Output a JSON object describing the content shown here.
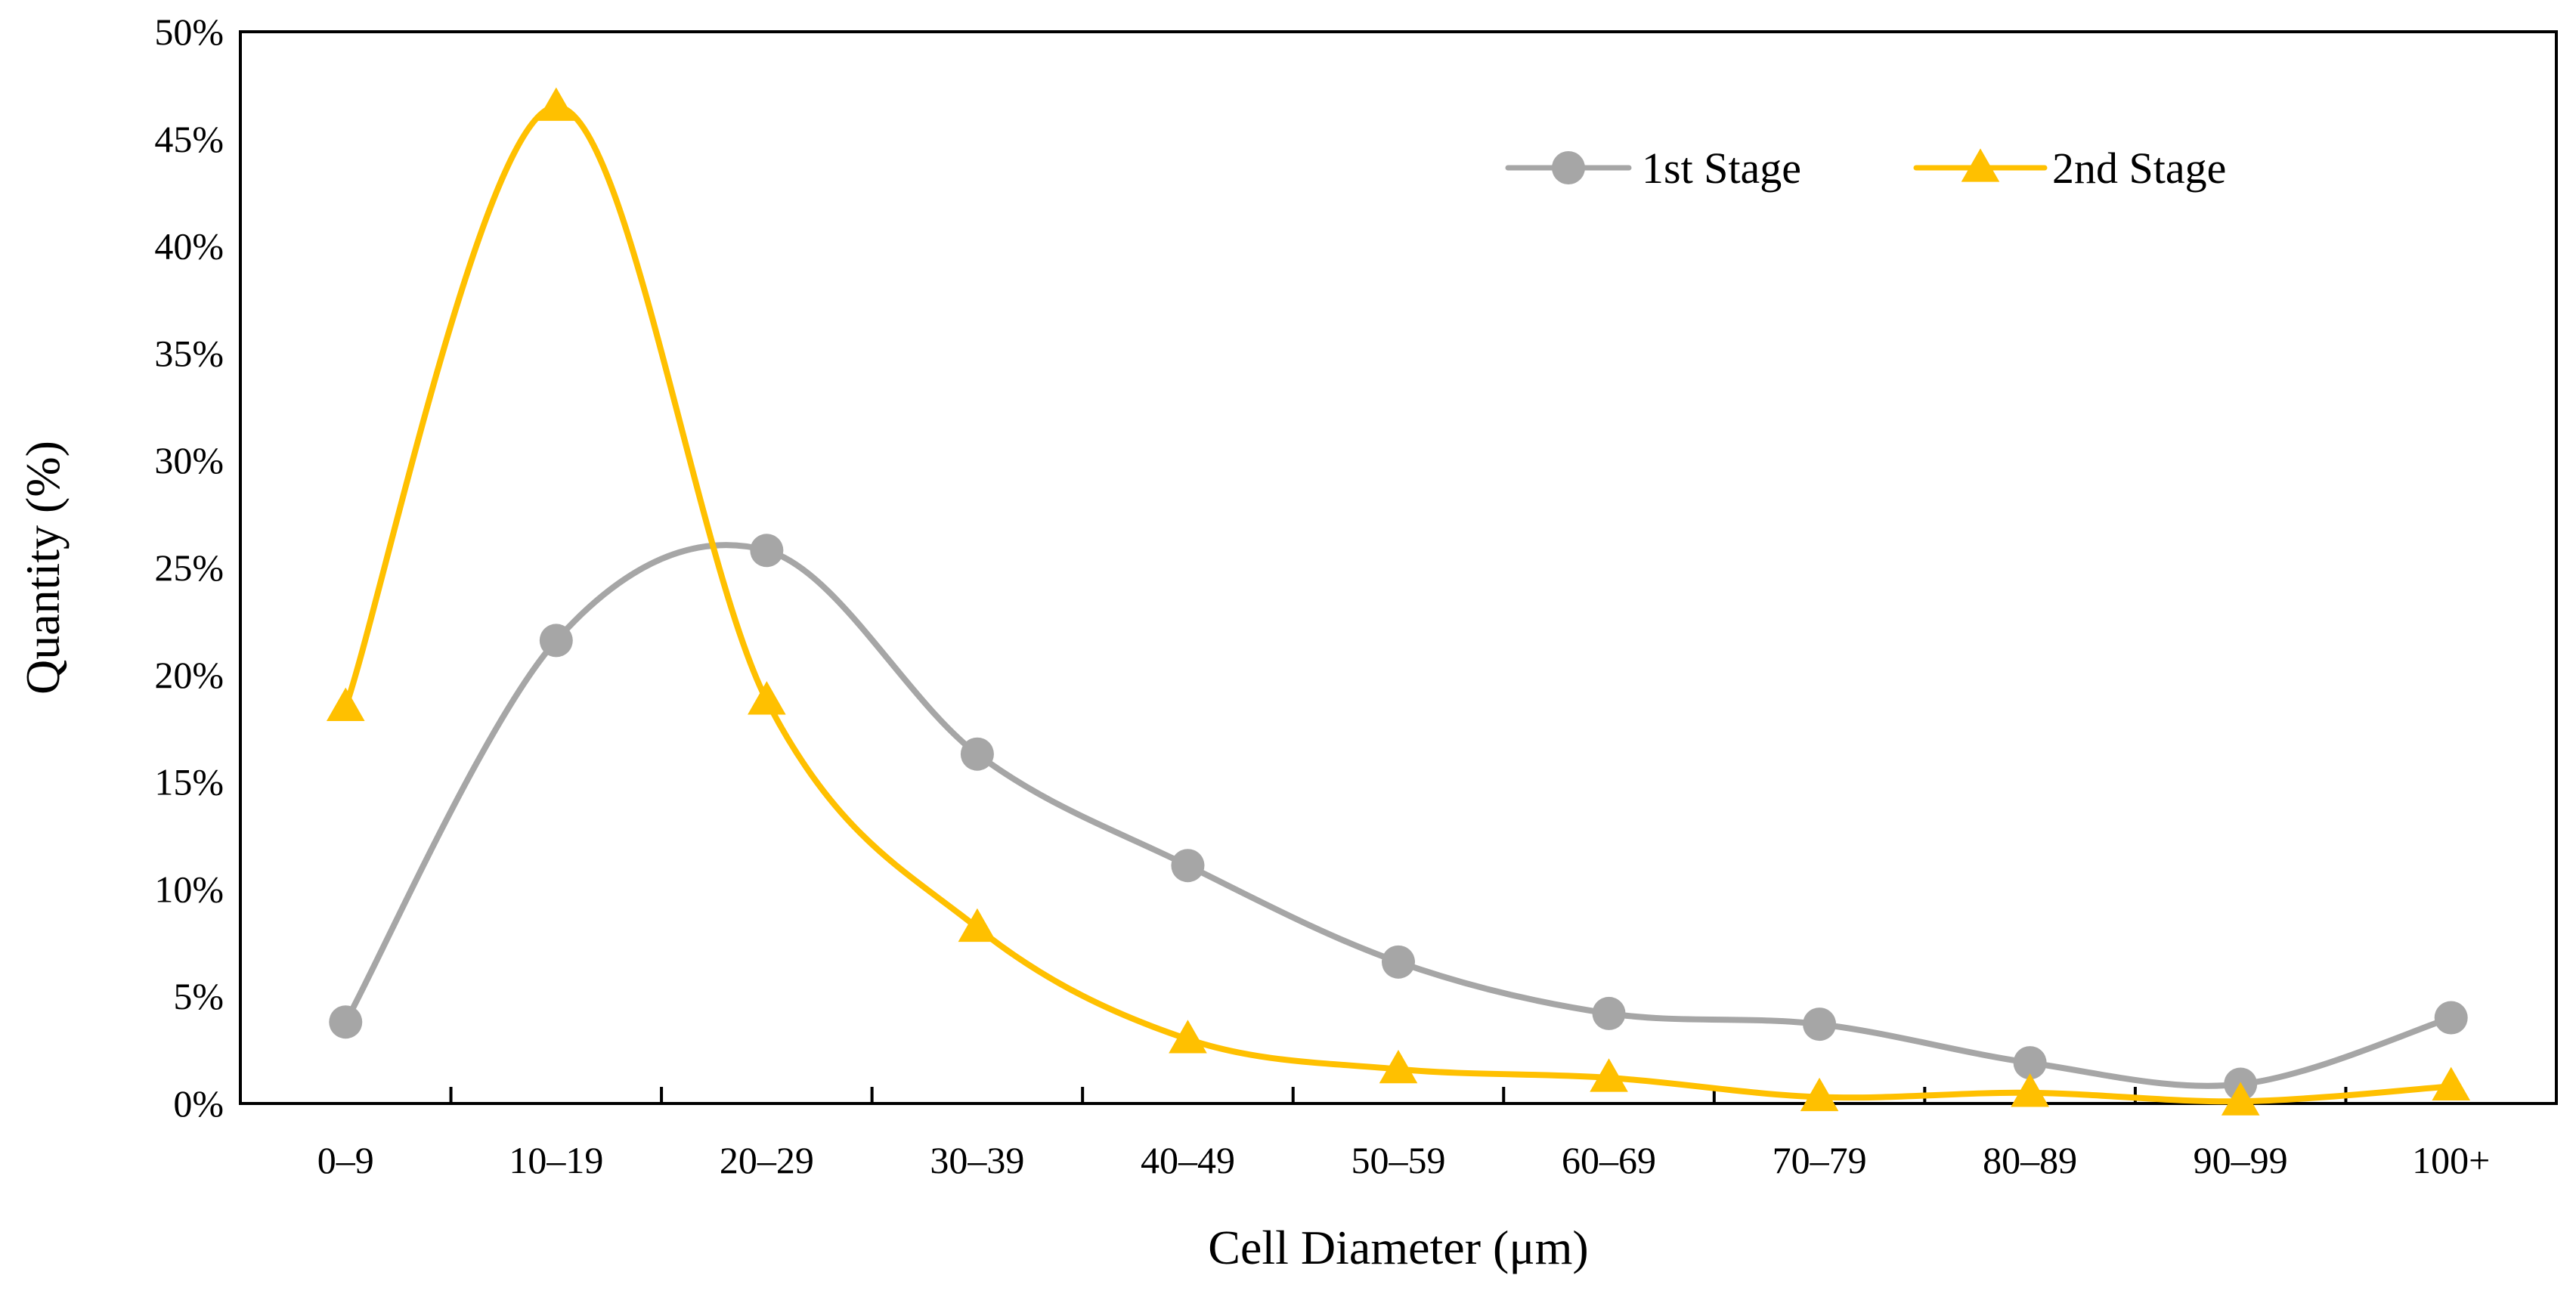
{
  "chart_data": {
    "type": "line",
    "title": "",
    "xlabel": "Cell Diameter (μm)",
    "ylabel": "Quantity (%)",
    "categories": [
      "0–9",
      "10–19",
      "20–29",
      "30–39",
      "40–49",
      "50–59",
      "60–69",
      "70–79",
      "80–89",
      "90–99",
      "100+"
    ],
    "ylim": [
      0,
      50
    ],
    "yticks": [
      0,
      5,
      10,
      15,
      20,
      25,
      30,
      35,
      40,
      45,
      50
    ],
    "ytick_labels": [
      "0%",
      "5%",
      "10%",
      "15%",
      "20%",
      "25%",
      "30%",
      "35%",
      "40%",
      "45%",
      "50%"
    ],
    "series": [
      {
        "name": "1st Stage",
        "marker": "circle",
        "color": "#A6A6A6",
        "values": [
          3.8,
          21.6,
          25.8,
          16.3,
          11.1,
          6.6,
          4.2,
          3.7,
          1.9,
          0.9,
          4.0
        ]
      },
      {
        "name": "2nd Stage",
        "marker": "triangle",
        "color": "#FFC000",
        "values": [
          18.5,
          46.5,
          18.8,
          8.2,
          3.0,
          1.6,
          1.2,
          0.3,
          0.5,
          0.1,
          0.8
        ]
      }
    ],
    "legend": {
      "position": "top-right",
      "entries": [
        "1st Stage",
        "2nd Stage"
      ]
    },
    "grid": false
  }
}
